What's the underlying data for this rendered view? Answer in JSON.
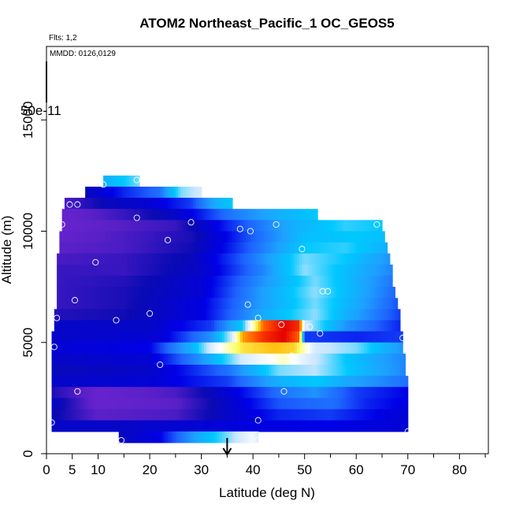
{
  "chart_data": {
    "type": "heatmap",
    "title": "ATOM2 Northeast_Pacific_1 OC_GEOS5",
    "xlabel": "Latitude (deg N)",
    "ylabel": "Altitude (m)",
    "xlim": [
      0,
      85
    ],
    "ylim": [
      0,
      17500
    ],
    "x_ticks": [
      0,
      5,
      10,
      20,
      30,
      40,
      50,
      60,
      70,
      80
    ],
    "y_ticks": [
      0,
      5000,
      10000,
      15000
    ],
    "annotations": {
      "flights": "Flts: 1,2",
      "dates": "MMDD: 0126,0129"
    },
    "colorbar_max_label": "50e-11",
    "grid": false,
    "marker": {
      "x": 35,
      "description": "arrow"
    },
    "color_scale": [
      "#7a28d6",
      "#5a20c8",
      "#0a0ab4",
      "#0000e6",
      "#1e64ff",
      "#1ea0ff",
      "#00c8ff",
      "#c8e6ff",
      "#ffffff",
      "#ffff66",
      "#ffb400",
      "#ff5000",
      "#e60000"
    ],
    "bands": [
      {
        "z0": 12000,
        "z1": 12500,
        "x0": 11,
        "x1": 18,
        "stops": [
          [
            11,
            0.45
          ],
          [
            15,
            0.5
          ],
          [
            18,
            0.55
          ]
        ]
      },
      {
        "z0": 11500,
        "z1": 12000,
        "x0": 7.5,
        "x1": 30,
        "stops": [
          [
            7.5,
            0.18
          ],
          [
            15,
            0.28
          ],
          [
            22,
            0.35
          ],
          [
            26,
            0.55
          ],
          [
            30,
            0.6
          ]
        ]
      },
      {
        "z0": 11000,
        "z1": 11500,
        "x0": 3.5,
        "x1": 36,
        "stops": [
          [
            3.5,
            0.1
          ],
          [
            12,
            0.18
          ],
          [
            20,
            0.22
          ],
          [
            28,
            0.3
          ],
          [
            33,
            0.45
          ],
          [
            36,
            0.5
          ]
        ]
      },
      {
        "z0": 10500,
        "z1": 11000,
        "x0": 3,
        "x1": 52.5,
        "stops": [
          [
            3,
            0.05
          ],
          [
            15,
            0.12
          ],
          [
            25,
            0.2
          ],
          [
            35,
            0.35
          ],
          [
            45,
            0.45
          ],
          [
            52.5,
            0.5
          ]
        ]
      },
      {
        "z0": 10000,
        "z1": 10500,
        "x0": 3,
        "x1": 65,
        "stops": [
          [
            3,
            0.05
          ],
          [
            12,
            0.08
          ],
          [
            25,
            0.12
          ],
          [
            35,
            0.28
          ],
          [
            48,
            0.45
          ],
          [
            58,
            0.52
          ],
          [
            65,
            0.5
          ]
        ]
      },
      {
        "z0": 9500,
        "z1": 10000,
        "x0": 2.5,
        "x1": 65.5,
        "stops": [
          [
            2.5,
            0.06
          ],
          [
            15,
            0.1
          ],
          [
            28,
            0.15
          ],
          [
            38,
            0.3
          ],
          [
            50,
            0.48
          ],
          [
            60,
            0.5
          ],
          [
            65.5,
            0.48
          ]
        ]
      },
      {
        "z0": 9000,
        "z1": 9500,
        "x0": 2.5,
        "x1": 66,
        "stops": [
          [
            2.5,
            0.08
          ],
          [
            15,
            0.1
          ],
          [
            28,
            0.16
          ],
          [
            40,
            0.34
          ],
          [
            50,
            0.5
          ],
          [
            58,
            0.52
          ],
          [
            66,
            0.45
          ]
        ]
      },
      {
        "z0": 8500,
        "z1": 9000,
        "x0": 2,
        "x1": 66.5,
        "stops": [
          [
            2,
            0.1
          ],
          [
            15,
            0.12
          ],
          [
            28,
            0.18
          ],
          [
            40,
            0.36
          ],
          [
            50,
            0.55
          ],
          [
            58,
            0.5
          ],
          [
            66.5,
            0.4
          ]
        ]
      },
      {
        "z0": 8000,
        "z1": 8500,
        "x0": 2,
        "x1": 67,
        "stops": [
          [
            2,
            0.12
          ],
          [
            15,
            0.12
          ],
          [
            30,
            0.2
          ],
          [
            42,
            0.38
          ],
          [
            50,
            0.56
          ],
          [
            58,
            0.48
          ],
          [
            67,
            0.38
          ]
        ]
      },
      {
        "z0": 7500,
        "z1": 8000,
        "x0": 2,
        "x1": 67,
        "stops": [
          [
            2,
            0.12
          ],
          [
            15,
            0.14
          ],
          [
            30,
            0.22
          ],
          [
            42,
            0.4
          ],
          [
            52,
            0.55
          ],
          [
            60,
            0.45
          ],
          [
            67,
            0.36
          ]
        ]
      },
      {
        "z0": 7000,
        "z1": 7500,
        "x0": 2,
        "x1": 67.5,
        "stops": [
          [
            2,
            0.12
          ],
          [
            15,
            0.15
          ],
          [
            30,
            0.22
          ],
          [
            42,
            0.42
          ],
          [
            52,
            0.56
          ],
          [
            60,
            0.45
          ],
          [
            67.5,
            0.34
          ]
        ]
      },
      {
        "z0": 6500,
        "z1": 7000,
        "x0": 2,
        "x1": 68,
        "stops": [
          [
            2,
            0.12
          ],
          [
            15,
            0.15
          ],
          [
            30,
            0.24
          ],
          [
            42,
            0.42
          ],
          [
            52,
            0.55
          ],
          [
            60,
            0.44
          ],
          [
            68,
            0.32
          ]
        ]
      },
      {
        "z0": 6000,
        "z1": 6500,
        "x0": 1.5,
        "x1": 68.5,
        "stops": [
          [
            1.5,
            0.14
          ],
          [
            15,
            0.16
          ],
          [
            30,
            0.24
          ],
          [
            42,
            0.44
          ],
          [
            52,
            0.56
          ],
          [
            60,
            0.42
          ],
          [
            68.5,
            0.3
          ]
        ]
      },
      {
        "z0": 5500,
        "z1": 6000,
        "x0": 1.5,
        "x1": 68.5,
        "stops": [
          [
            1.5,
            0.2
          ],
          [
            20,
            0.2
          ],
          [
            32,
            0.3
          ],
          [
            38,
            0.5
          ],
          [
            42,
            0.9
          ],
          [
            46,
            1.0
          ],
          [
            49,
            0.95
          ],
          [
            50,
            0.6
          ],
          [
            58,
            0.4
          ],
          [
            68.5,
            0.28
          ]
        ]
      },
      {
        "z0": 5000,
        "z1": 5500,
        "x0": 1,
        "x1": 69,
        "stops": [
          [
            1,
            0.2
          ],
          [
            22,
            0.22
          ],
          [
            32,
            0.4
          ],
          [
            36,
            0.6
          ],
          [
            38,
            0.85
          ],
          [
            42,
            0.95
          ],
          [
            46,
            1.0
          ],
          [
            49,
            0.9
          ],
          [
            50,
            0.3
          ],
          [
            60,
            0.28
          ],
          [
            69,
            0.3
          ]
        ]
      },
      {
        "z0": 4500,
        "z1": 5000,
        "x0": 1,
        "x1": 69,
        "stops": [
          [
            1,
            0.22
          ],
          [
            20,
            0.25
          ],
          [
            28,
            0.45
          ],
          [
            33,
            0.65
          ],
          [
            38,
            0.78
          ],
          [
            44,
            0.82
          ],
          [
            48,
            0.8
          ],
          [
            52,
            0.6
          ],
          [
            60,
            0.55
          ],
          [
            66,
            0.45
          ],
          [
            69,
            0.4
          ]
        ]
      },
      {
        "z0": 4000,
        "z1": 4500,
        "x0": 1,
        "x1": 69.5,
        "stops": [
          [
            1,
            0.2
          ],
          [
            20,
            0.22
          ],
          [
            30,
            0.4
          ],
          [
            38,
            0.6
          ],
          [
            46,
            0.7
          ],
          [
            50,
            0.62
          ],
          [
            58,
            0.5
          ],
          [
            65,
            0.42
          ],
          [
            69.5,
            0.38
          ]
        ]
      },
      {
        "z0": 3500,
        "z1": 4000,
        "x0": 1,
        "x1": 69.5,
        "stops": [
          [
            1,
            0.18
          ],
          [
            20,
            0.2
          ],
          [
            35,
            0.35
          ],
          [
            45,
            0.55
          ],
          [
            52,
            0.58
          ],
          [
            60,
            0.48
          ],
          [
            69.5,
            0.38
          ]
        ]
      },
      {
        "z0": 3000,
        "z1": 3500,
        "x0": 1,
        "x1": 70,
        "stops": [
          [
            1,
            0.2
          ],
          [
            20,
            0.22
          ],
          [
            35,
            0.3
          ],
          [
            45,
            0.45
          ],
          [
            52,
            0.5
          ],
          [
            60,
            0.42
          ],
          [
            70,
            0.35
          ]
        ]
      },
      {
        "z0": 2500,
        "z1": 3000,
        "x0": 1,
        "x1": 70,
        "stops": [
          [
            1,
            0.15
          ],
          [
            10,
            0.05
          ],
          [
            25,
            0.1
          ],
          [
            35,
            0.22
          ],
          [
            45,
            0.35
          ],
          [
            52,
            0.4
          ],
          [
            60,
            0.3
          ],
          [
            70,
            0.25
          ]
        ]
      },
      {
        "z0": 2000,
        "z1": 2500,
        "x0": 1,
        "x1": 70,
        "stops": [
          [
            1,
            0.2
          ],
          [
            10,
            0.05
          ],
          [
            25,
            0.08
          ],
          [
            35,
            0.2
          ],
          [
            45,
            0.32
          ],
          [
            55,
            0.35
          ],
          [
            62,
            0.28
          ],
          [
            70,
            0.24
          ]
        ]
      },
      {
        "z0": 1500,
        "z1": 2000,
        "x0": 1,
        "x1": 70,
        "stops": [
          [
            1,
            0.18
          ],
          [
            10,
            0.08
          ],
          [
            25,
            0.1
          ],
          [
            35,
            0.2
          ],
          [
            45,
            0.28
          ],
          [
            55,
            0.3
          ],
          [
            62,
            0.26
          ],
          [
            70,
            0.22
          ]
        ]
      },
      {
        "z0": 1000,
        "z1": 1500,
        "x0": 1,
        "x1": 70,
        "stops": [
          [
            1,
            0.2
          ],
          [
            15,
            0.2
          ],
          [
            30,
            0.22
          ],
          [
            40,
            0.24
          ],
          [
            55,
            0.25
          ],
          [
            70,
            0.22
          ]
        ]
      },
      {
        "z0": 500,
        "z1": 1000,
        "x0": 14,
        "x1": 41,
        "stops": [
          [
            14,
            0.18
          ],
          [
            22,
            0.25
          ],
          [
            30,
            0.45
          ],
          [
            35,
            0.55
          ],
          [
            40,
            0.65
          ],
          [
            41,
            0.6
          ]
        ]
      }
    ],
    "points": [
      {
        "x": 11,
        "y": 12100
      },
      {
        "x": 17.5,
        "y": 12300
      },
      {
        "x": 4.5,
        "y": 11200
      },
      {
        "x": 6,
        "y": 11200
      },
      {
        "x": 3,
        "y": 10300
      },
      {
        "x": 17.5,
        "y": 10600
      },
      {
        "x": 28,
        "y": 10400
      },
      {
        "x": 37.5,
        "y": 10100
      },
      {
        "x": 39.5,
        "y": 10000
      },
      {
        "x": 44.5,
        "y": 10300
      },
      {
        "x": 64,
        "y": 10300
      },
      {
        "x": 23.5,
        "y": 9600
      },
      {
        "x": 49.5,
        "y": 9200
      },
      {
        "x": 9.5,
        "y": 8600
      },
      {
        "x": 53.5,
        "y": 7300
      },
      {
        "x": 54.5,
        "y": 7300
      },
      {
        "x": 5.5,
        "y": 6900
      },
      {
        "x": 39,
        "y": 6700
      },
      {
        "x": 20,
        "y": 6300
      },
      {
        "x": 2,
        "y": 6100
      },
      {
        "x": 13.5,
        "y": 6000
      },
      {
        "x": 41,
        "y": 6100
      },
      {
        "x": 45.5,
        "y": 5800
      },
      {
        "x": 51,
        "y": 5700
      },
      {
        "x": 53,
        "y": 5400
      },
      {
        "x": 69,
        "y": 5200
      },
      {
        "x": 1.5,
        "y": 4800
      },
      {
        "x": 47.5,
        "y": 4400
      },
      {
        "x": 22,
        "y": 4000
      },
      {
        "x": 6,
        "y": 2800
      },
      {
        "x": 46,
        "y": 2800
      },
      {
        "x": 41,
        "y": 1500
      },
      {
        "x": 1,
        "y": 1400
      },
      {
        "x": 70,
        "y": 1000
      },
      {
        "x": 14.5,
        "y": 600
      },
      {
        "x": 41,
        "y": 600
      }
    ]
  }
}
